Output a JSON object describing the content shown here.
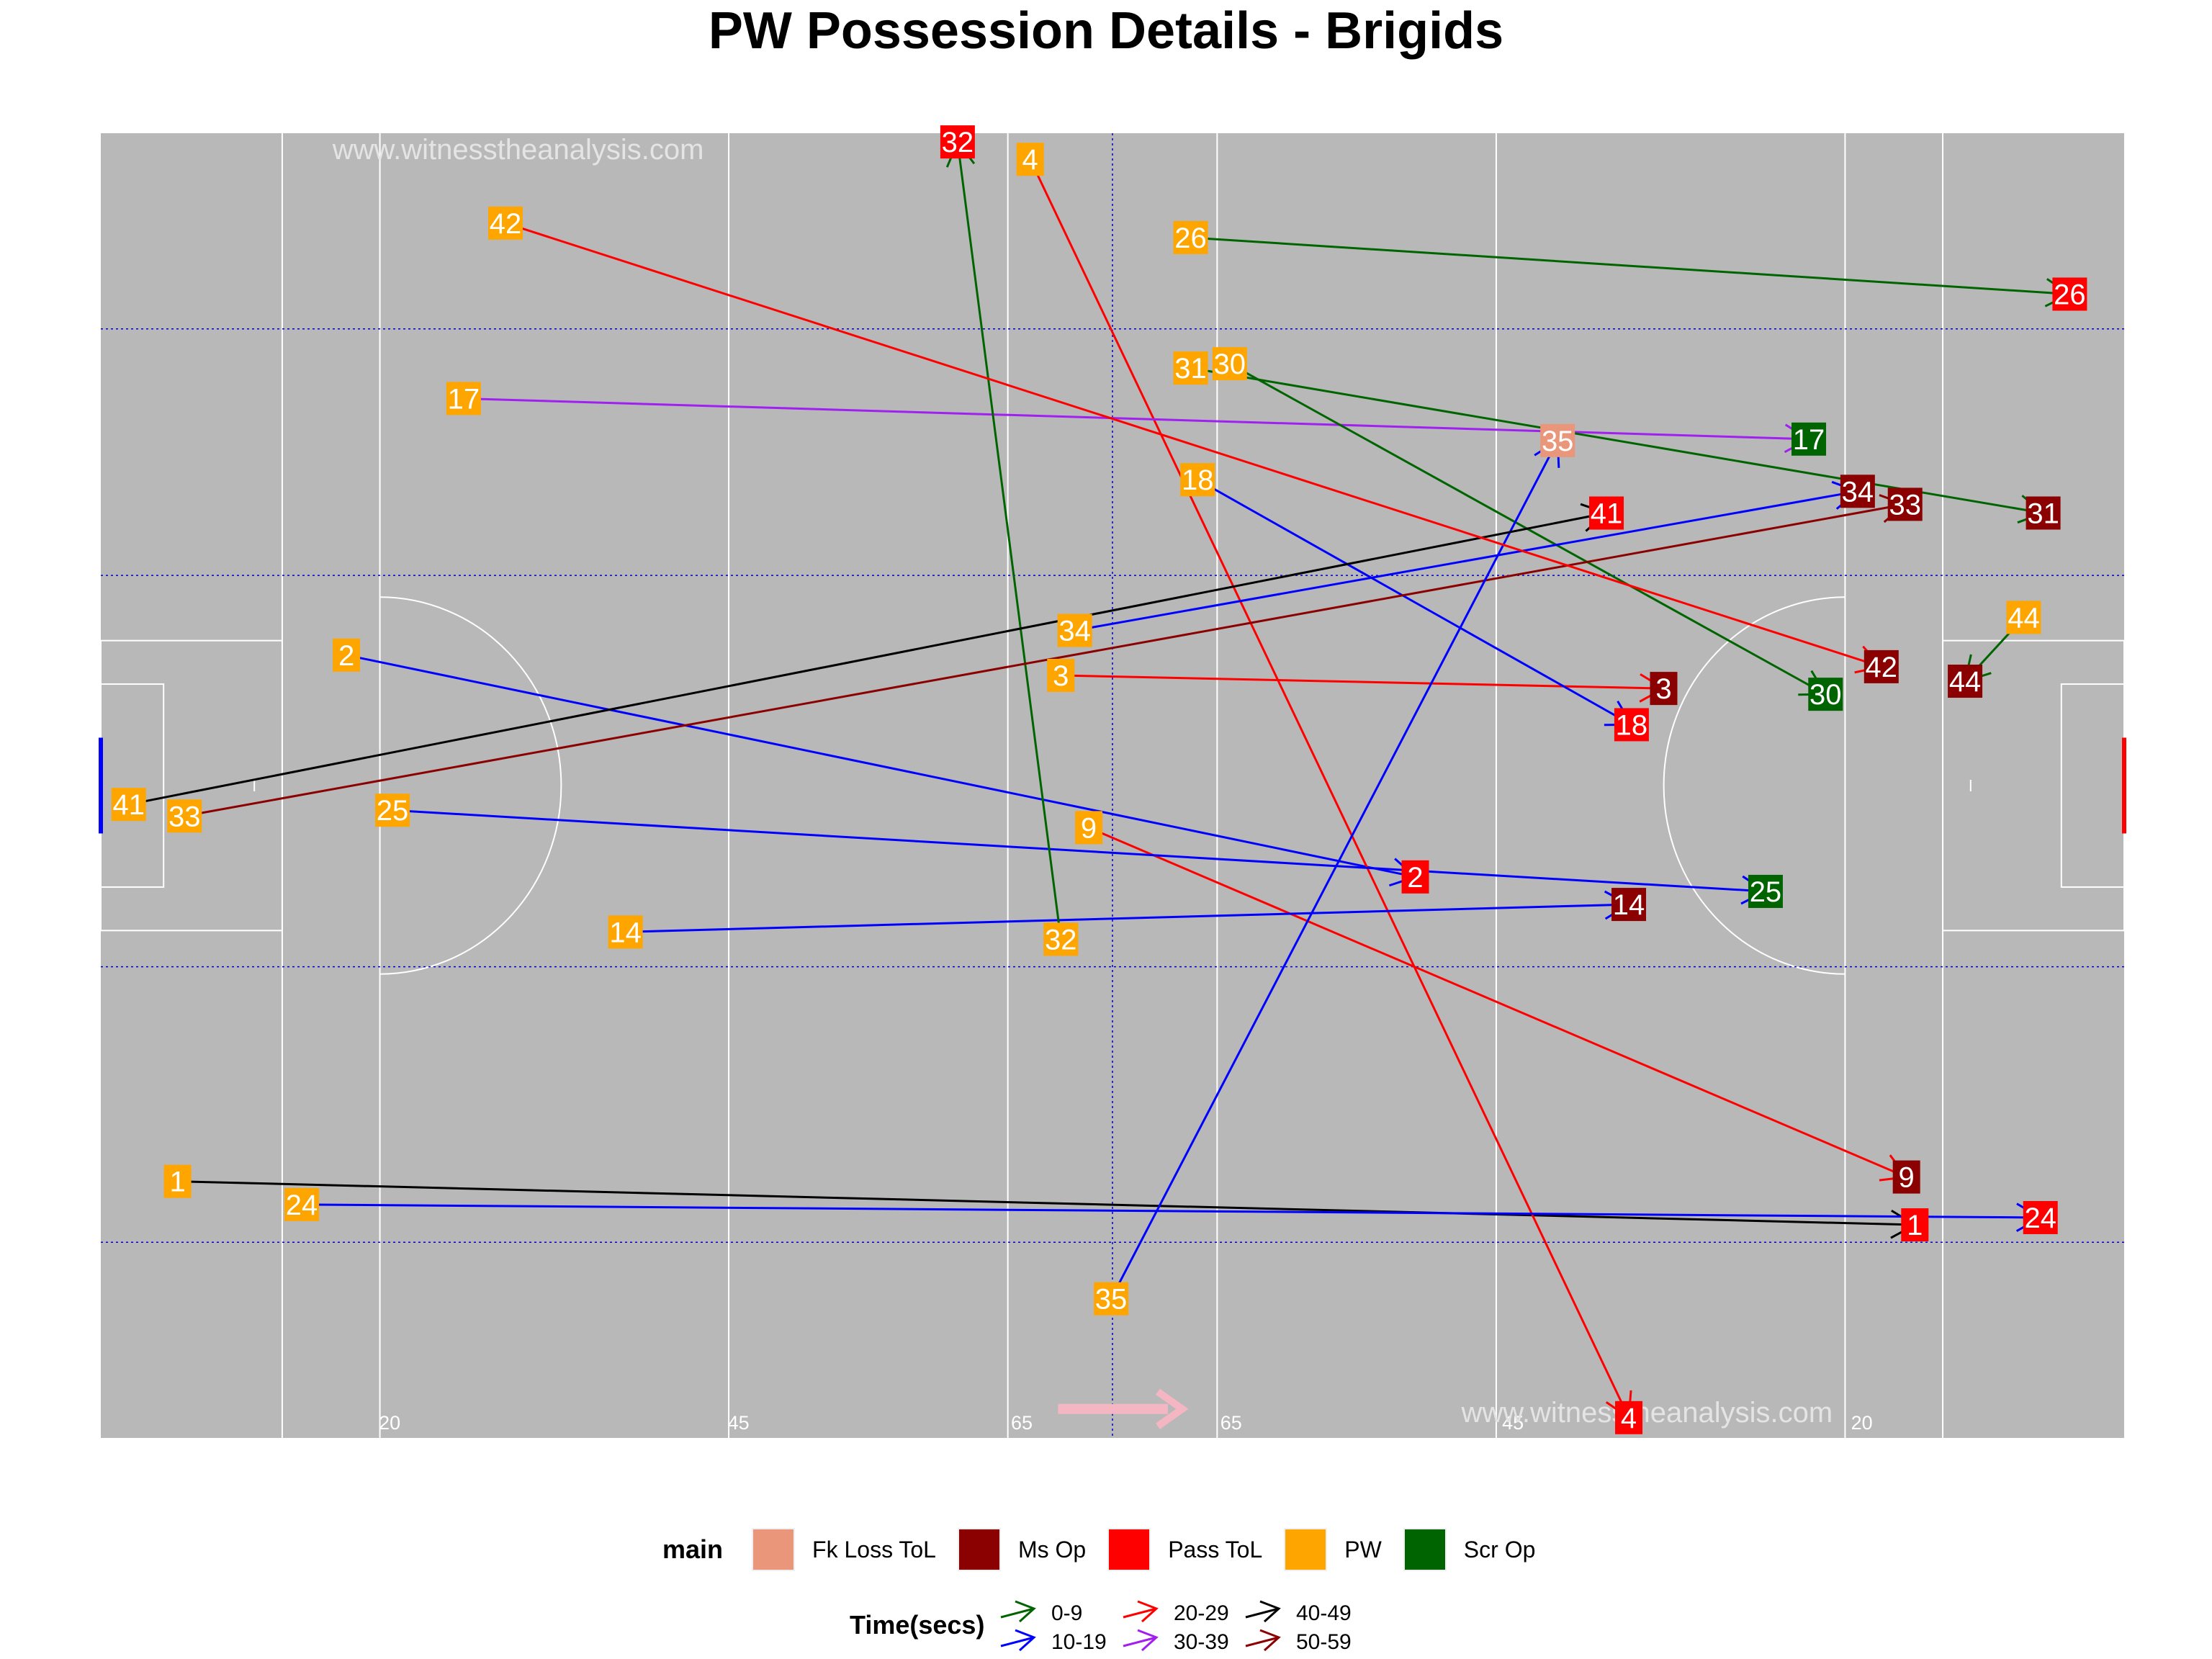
{
  "title": "PW Possession Details - Brigids",
  "watermark": "www.witnesstheanalysis.com",
  "pitch": {
    "bottom_labels": [
      "20",
      "45",
      "65",
      "65",
      "45",
      "20"
    ],
    "colors": {
      "background": "#b8b8b8",
      "lines": "#ffffff",
      "guide": "#0000cc",
      "direction_arrow": "#f4b6c2",
      "left_goal": "#0000ff",
      "right_goal": "#ff0000"
    }
  },
  "legend": {
    "main_title": "main",
    "main_items": [
      {
        "label": "Fk Loss ToL",
        "color": "#e9967a"
      },
      {
        "label": "Ms Op",
        "color": "#8b0000"
      },
      {
        "label": "Pass ToL",
        "color": "#ff0000"
      },
      {
        "label": "PW",
        "color": "#ffa500"
      },
      {
        "label": "Scr Op",
        "color": "#006400"
      }
    ],
    "time_title": "Time(secs)",
    "time_items": [
      {
        "label": "0-9",
        "color": "#006400"
      },
      {
        "label": "10-19",
        "color": "#0000ff"
      },
      {
        "label": "20-29",
        "color": "#ff0000"
      },
      {
        "label": "30-39",
        "color": "#a020f0"
      },
      {
        "label": "40-49",
        "color": "#000000"
      },
      {
        "label": "50-59",
        "color": "#8b0000"
      }
    ]
  },
  "chart_data": {
    "type": "pitch_arrows",
    "title": "PW Possession Details - Brigids",
    "xlim": [
      0,
      145
    ],
    "ylim": [
      0,
      90
    ],
    "category_colors": {
      "Fk Loss ToL": "#e9967a",
      "Ms Op": "#8b0000",
      "Pass ToL": "#ff0000",
      "PW": "#ffa500",
      "Scr Op": "#006400"
    },
    "time_colors": {
      "0-9": "#006400",
      "10-19": "#0000ff",
      "20-29": "#ff0000",
      "30-39": "#a020f0",
      "40-49": "#000000",
      "50-59": "#8b0000"
    },
    "possessions": [
      {
        "id": "1",
        "start": [
          5.5,
          17.7
        ],
        "end": [
          130.0,
          14.7
        ],
        "end_type": "Pass ToL",
        "time": "40-49"
      },
      {
        "id": "2",
        "start": [
          17.6,
          54.0
        ],
        "end": [
          94.2,
          38.7
        ],
        "end_type": "Pass ToL",
        "time": "10-19"
      },
      {
        "id": "3",
        "start": [
          68.8,
          52.6
        ],
        "end": [
          112.0,
          51.7
        ],
        "end_type": "Ms Op",
        "time": "20-29"
      },
      {
        "id": "4",
        "start": [
          66.6,
          88.2
        ],
        "end": [
          109.5,
          1.4
        ],
        "end_type": "Pass ToL",
        "time": "20-29"
      },
      {
        "id": "9",
        "start": [
          70.8,
          42.1
        ],
        "end": [
          129.4,
          18.0
        ],
        "end_type": "Ms Op",
        "time": "20-29"
      },
      {
        "id": "14",
        "start": [
          37.6,
          34.9
        ],
        "end": [
          109.5,
          36.8
        ],
        "end_type": "Ms Op",
        "time": "10-19"
      },
      {
        "id": "17",
        "start": [
          26.0,
          71.7
        ],
        "end": [
          122.4,
          68.9
        ],
        "end_type": "Scr Op",
        "time": "30-39"
      },
      {
        "id": "18",
        "start": [
          78.6,
          66.1
        ],
        "end": [
          109.7,
          49.2
        ],
        "end_type": "Pass ToL",
        "time": "10-19"
      },
      {
        "id": "24",
        "start": [
          14.4,
          16.1
        ],
        "end": [
          139.0,
          15.2
        ],
        "end_type": "Pass ToL",
        "time": "10-19"
      },
      {
        "id": "25",
        "start": [
          20.9,
          43.3
        ],
        "end": [
          119.3,
          37.7
        ],
        "end_type": "Scr Op",
        "time": "10-19"
      },
      {
        "id": "26",
        "start": [
          78.1,
          82.8
        ],
        "end": [
          141.1,
          78.9
        ],
        "end_type": "Pass ToL",
        "time": "0-9"
      },
      {
        "id": "30",
        "start": [
          80.9,
          74.1
        ],
        "end": [
          123.6,
          51.3
        ],
        "end_type": "Scr Op",
        "time": "0-9"
      },
      {
        "id": "31",
        "start": [
          78.1,
          73.8
        ],
        "end": [
          139.2,
          63.8
        ],
        "end_type": "Ms Op",
        "time": "0-9"
      },
      {
        "id": "32",
        "start": [
          68.8,
          34.4
        ],
        "end": [
          61.4,
          89.4
        ],
        "end_type": "Pass ToL",
        "time": "0-9"
      },
      {
        "id": "33",
        "start": [
          6.0,
          42.9
        ],
        "end": [
          129.3,
          64.4
        ],
        "end_type": "Ms Op",
        "time": "50-59"
      },
      {
        "id": "34",
        "start": [
          69.8,
          55.7
        ],
        "end": [
          125.9,
          65.3
        ],
        "end_type": "Ms Op",
        "time": "10-19"
      },
      {
        "id": "35",
        "start": [
          72.4,
          9.6
        ],
        "end": [
          104.4,
          68.8
        ],
        "end_type": "Fk Loss ToL",
        "time": "10-19"
      },
      {
        "id": "41",
        "start": [
          2.0,
          43.7
        ],
        "end": [
          107.9,
          63.8
        ],
        "end_type": "Pass ToL",
        "time": "40-49"
      },
      {
        "id": "42",
        "start": [
          29.0,
          83.8
        ],
        "end": [
          127.6,
          53.2
        ],
        "end_type": "Ms Op",
        "time": "20-29"
      },
      {
        "id": "44",
        "start": [
          137.8,
          56.6
        ],
        "end": [
          133.6,
          52.2
        ],
        "end_type": "Ms Op",
        "time": "0-9"
      }
    ]
  }
}
